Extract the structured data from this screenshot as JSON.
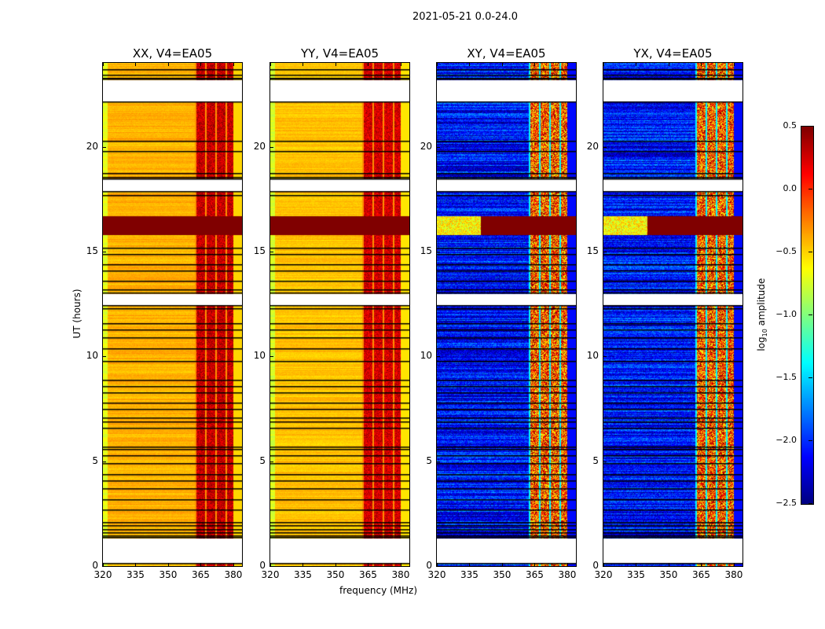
{
  "figure": {
    "suptitle": "2021-05-21 0.0-24.0",
    "xlabel": "frequency (MHz)",
    "ylabel": "UT (hours)",
    "colorbar_label": "log10 amplitude"
  },
  "chart_data": {
    "type": "heatmap",
    "colormap": "jet",
    "clim": [
      -2.5,
      0.5
    ],
    "colorbar_ticks": [
      "0.5",
      "0.0",
      "−0.5",
      "−1.0",
      "−1.5",
      "−2.0",
      "−2.5"
    ],
    "colorbar_tick_values": [
      0.5,
      0.0,
      -0.5,
      -1.0,
      -1.5,
      -2.0,
      -2.5
    ],
    "xlim": [
      320,
      384
    ],
    "ylim": [
      0,
      24
    ],
    "xticks": [
      320,
      335,
      350,
      365,
      380
    ],
    "xtick_labels": [
      "320",
      "335",
      "350",
      "365",
      "380"
    ],
    "yticks": [
      0,
      5,
      10,
      15,
      20
    ],
    "ytick_labels": [
      "0",
      "5",
      "10",
      "15",
      "20"
    ],
    "blank_hours": [
      [
        0.15,
        1.35
      ],
      [
        12.45,
        13.0
      ],
      [
        17.9,
        18.45
      ],
      [
        22.15,
        23.2
      ]
    ],
    "flag_lines_hours": [
      1.45,
      1.6,
      1.75,
      1.95,
      2.1,
      2.7,
      3.2,
      3.7,
      4.1,
      4.4,
      4.9,
      5.3,
      5.6,
      5.7,
      6.6,
      6.9,
      7.1,
      7.5,
      7.8,
      8.3,
      8.6,
      8.9,
      9.8,
      10.4,
      10.9,
      11.3,
      11.6,
      12.3,
      13.2,
      13.6,
      14.1,
      14.4,
      14.9,
      15.2,
      17.7,
      18.55,
      18.75,
      19.8,
      20.3,
      23.3,
      23.45,
      23.7
    ],
    "rfi_band_mhz": [
      362,
      380
    ],
    "saturated_hours": [
      15.8,
      16.7
    ],
    "panels": [
      {
        "title": "XX, V4=EA05",
        "baseline": -0.4,
        "rfi_level": 0.3
      },
      {
        "title": "YY, V4=EA05",
        "baseline": -0.45,
        "rfi_level": 0.25
      },
      {
        "title": "XY, V4=EA05",
        "baseline": -2.1,
        "rfi_level": -0.1
      },
      {
        "title": "YX, V4=EA05",
        "baseline": -2.1,
        "rfi_level": -0.1
      }
    ]
  }
}
